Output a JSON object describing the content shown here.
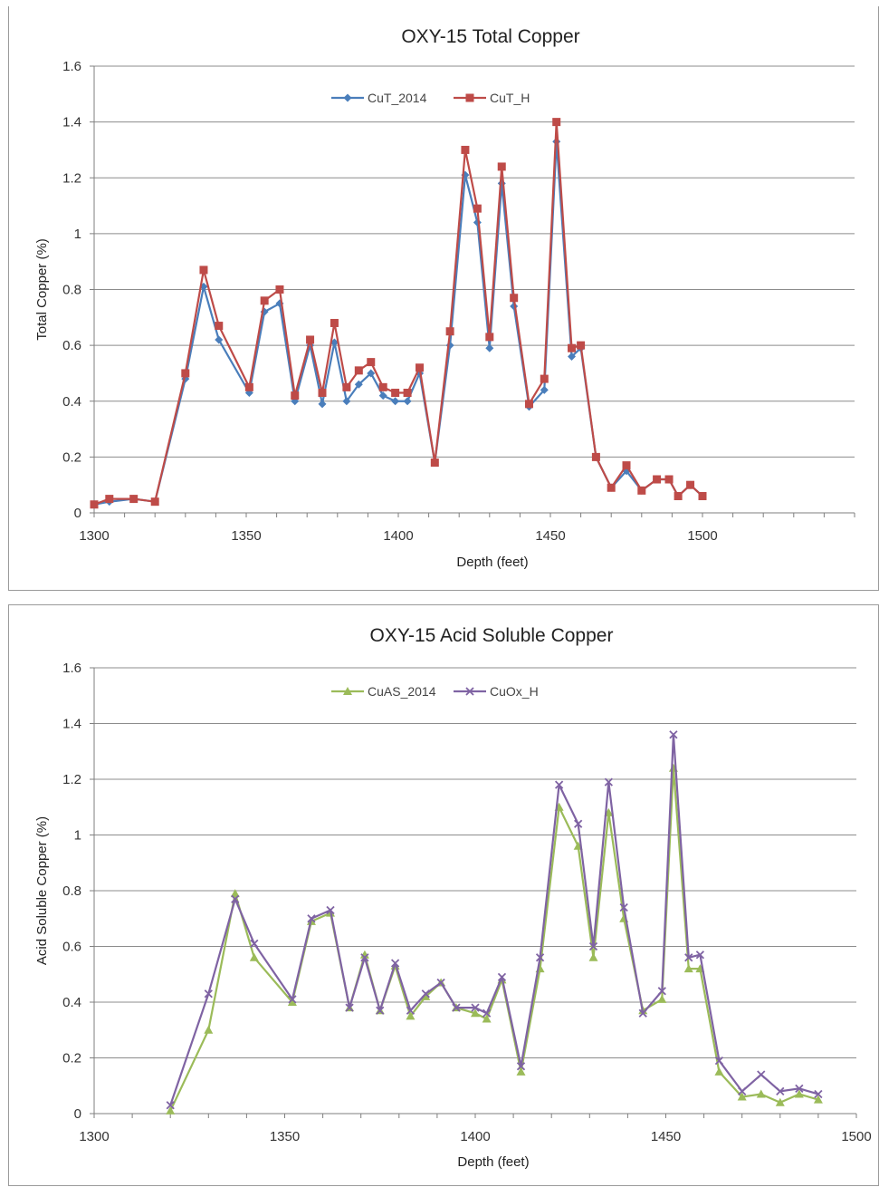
{
  "chart_data": [
    {
      "type": "line",
      "title": "OXY-15  Total Copper",
      "xlabel": "Depth (feet)",
      "ylabel": "Total Copper (%)",
      "xlim": [
        1300,
        1550
      ],
      "ylim": [
        0,
        1.6
      ],
      "x_ticks": [
        "1300",
        "1350",
        "1400",
        "1450",
        "1500"
      ],
      "x_tick_values": [
        1300,
        1350,
        1400,
        1450,
        1500
      ],
      "y_ticks": [
        "0",
        "0.2",
        "0.4",
        "0.6",
        "0.8",
        "1",
        "1.2",
        "1.4",
        "1.6"
      ],
      "y_tick_values": [
        0,
        0.2,
        0.4,
        0.6,
        0.8,
        1,
        1.2,
        1.4,
        1.6
      ],
      "grid": "horizontal",
      "legend_position": "top-center",
      "series": [
        {
          "name": "CuT_2014",
          "color": "#4a7ebb",
          "marker": "diamond",
          "points": [
            [
              1300,
              0.03
            ],
            [
              1305,
              0.04
            ],
            [
              1313,
              0.05
            ],
            [
              1320,
              0.04
            ],
            [
              1330,
              0.48
            ],
            [
              1336,
              0.81
            ],
            [
              1341,
              0.62
            ],
            [
              1351,
              0.43
            ],
            [
              1356,
              0.72
            ],
            [
              1361,
              0.75
            ],
            [
              1366,
              0.4
            ],
            [
              1371,
              0.6
            ],
            [
              1375,
              0.39
            ],
            [
              1379,
              0.61
            ],
            [
              1383,
              0.4
            ],
            [
              1387,
              0.46
            ],
            [
              1391,
              0.5
            ],
            [
              1395,
              0.42
            ],
            [
              1399,
              0.4
            ],
            [
              1403,
              0.4
            ],
            [
              1407,
              0.5
            ],
            [
              1412,
              0.18
            ],
            [
              1417,
              0.6
            ],
            [
              1422,
              1.21
            ],
            [
              1426,
              1.04
            ],
            [
              1430,
              0.59
            ],
            [
              1434,
              1.18
            ],
            [
              1438,
              0.74
            ],
            [
              1443,
              0.38
            ],
            [
              1448,
              0.44
            ],
            [
              1452,
              1.33
            ],
            [
              1457,
              0.56
            ],
            [
              1460,
              0.59
            ],
            [
              1465,
              0.2
            ],
            [
              1470,
              0.09
            ],
            [
              1475,
              0.15
            ],
            [
              1480,
              0.08
            ],
            [
              1485,
              0.12
            ],
            [
              1489,
              0.12
            ],
            [
              1492,
              0.06
            ],
            [
              1496,
              0.1
            ],
            [
              1500,
              0.06
            ]
          ]
        },
        {
          "name": "CuT_H",
          "color": "#be4b48",
          "marker": "square",
          "points": [
            [
              1300,
              0.03
            ],
            [
              1305,
              0.05
            ],
            [
              1313,
              0.05
            ],
            [
              1320,
              0.04
            ],
            [
              1330,
              0.5
            ],
            [
              1336,
              0.87
            ],
            [
              1341,
              0.67
            ],
            [
              1351,
              0.45
            ],
            [
              1356,
              0.76
            ],
            [
              1361,
              0.8
            ],
            [
              1366,
              0.42
            ],
            [
              1371,
              0.62
            ],
            [
              1375,
              0.43
            ],
            [
              1379,
              0.68
            ],
            [
              1383,
              0.45
            ],
            [
              1387,
              0.51
            ],
            [
              1391,
              0.54
            ],
            [
              1395,
              0.45
            ],
            [
              1399,
              0.43
            ],
            [
              1403,
              0.43
            ],
            [
              1407,
              0.52
            ],
            [
              1412,
              0.18
            ],
            [
              1417,
              0.65
            ],
            [
              1422,
              1.3
            ],
            [
              1426,
              1.09
            ],
            [
              1430,
              0.63
            ],
            [
              1434,
              1.24
            ],
            [
              1438,
              0.77
            ],
            [
              1443,
              0.39
            ],
            [
              1448,
              0.48
            ],
            [
              1452,
              1.4
            ],
            [
              1457,
              0.59
            ],
            [
              1460,
              0.6
            ],
            [
              1465,
              0.2
            ],
            [
              1470,
              0.09
            ],
            [
              1475,
              0.17
            ],
            [
              1480,
              0.08
            ],
            [
              1485,
              0.12
            ],
            [
              1489,
              0.12
            ],
            [
              1492,
              0.06
            ],
            [
              1496,
              0.1
            ],
            [
              1500,
              0.06
            ]
          ]
        }
      ]
    },
    {
      "type": "line",
      "title": "OXY-15  Acid Soluble Copper",
      "xlabel": "Depth (feet)",
      "ylabel": "Acid Soluble Copper (%)",
      "xlim": [
        1300,
        1500
      ],
      "ylim": [
        0,
        1.6
      ],
      "x_ticks": [
        "1300",
        "1350",
        "1400",
        "1450",
        "1500"
      ],
      "x_tick_values": [
        1300,
        1350,
        1400,
        1450,
        1500
      ],
      "y_ticks": [
        "0",
        "0.2",
        "0.4",
        "0.6",
        "0.8",
        "1",
        "1.2",
        "1.4",
        "1.6"
      ],
      "y_tick_values": [
        0,
        0.2,
        0.4,
        0.6,
        0.8,
        1,
        1.2,
        1.4,
        1.6
      ],
      "grid": "horizontal",
      "legend_position": "top-center",
      "series": [
        {
          "name": "CuAS_2014",
          "color": "#9bbb59",
          "marker": "triangle",
          "points": [
            [
              1320,
              0.01
            ],
            [
              1330,
              0.3
            ],
            [
              1337,
              0.79
            ],
            [
              1342,
              0.56
            ],
            [
              1352,
              0.4
            ],
            [
              1357,
              0.69
            ],
            [
              1362,
              0.72
            ],
            [
              1367,
              0.38
            ],
            [
              1371,
              0.57
            ],
            [
              1375,
              0.37
            ],
            [
              1379,
              0.53
            ],
            [
              1383,
              0.35
            ],
            [
              1387,
              0.42
            ],
            [
              1391,
              0.47
            ],
            [
              1395,
              0.38
            ],
            [
              1400,
              0.36
            ],
            [
              1403,
              0.34
            ],
            [
              1407,
              0.48
            ],
            [
              1412,
              0.15
            ],
            [
              1417,
              0.52
            ],
            [
              1422,
              1.1
            ],
            [
              1427,
              0.96
            ],
            [
              1431,
              0.56
            ],
            [
              1435,
              1.08
            ],
            [
              1439,
              0.7
            ],
            [
              1444,
              0.37
            ],
            [
              1449,
              0.41
            ],
            [
              1452,
              1.24
            ],
            [
              1456,
              0.52
            ],
            [
              1459,
              0.52
            ],
            [
              1464,
              0.15
            ],
            [
              1470,
              0.06
            ],
            [
              1475,
              0.07
            ],
            [
              1480,
              0.04
            ],
            [
              1485,
              0.07
            ],
            [
              1490,
              0.05
            ]
          ]
        },
        {
          "name": "CuOx_H",
          "color": "#7f63a3",
          "marker": "x",
          "points": [
            [
              1320,
              0.03
            ],
            [
              1330,
              0.43
            ],
            [
              1337,
              0.77
            ],
            [
              1342,
              0.61
            ],
            [
              1352,
              0.41
            ],
            [
              1357,
              0.7
            ],
            [
              1362,
              0.73
            ],
            [
              1367,
              0.38
            ],
            [
              1371,
              0.56
            ],
            [
              1375,
              0.37
            ],
            [
              1379,
              0.54
            ],
            [
              1383,
              0.37
            ],
            [
              1387,
              0.43
            ],
            [
              1391,
              0.47
            ],
            [
              1395,
              0.38
            ],
            [
              1400,
              0.38
            ],
            [
              1403,
              0.36
            ],
            [
              1407,
              0.49
            ],
            [
              1412,
              0.17
            ],
            [
              1417,
              0.56
            ],
            [
              1422,
              1.18
            ],
            [
              1427,
              1.04
            ],
            [
              1431,
              0.6
            ],
            [
              1435,
              1.19
            ],
            [
              1439,
              0.74
            ],
            [
              1444,
              0.36
            ],
            [
              1449,
              0.44
            ],
            [
              1452,
              1.36
            ],
            [
              1456,
              0.56
            ],
            [
              1459,
              0.57
            ],
            [
              1464,
              0.19
            ],
            [
              1470,
              0.08
            ],
            [
              1475,
              0.14
            ],
            [
              1480,
              0.08
            ],
            [
              1485,
              0.09
            ],
            [
              1490,
              0.07
            ]
          ]
        }
      ]
    }
  ]
}
